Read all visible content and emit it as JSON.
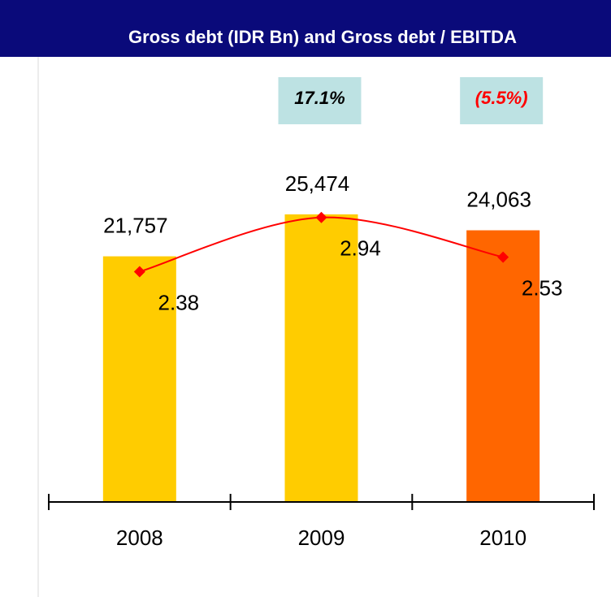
{
  "chart_data": {
    "type": "bar-line",
    "title": "Gross debt (IDR Bn) and Gross debt / EBITDA",
    "categories": [
      "2008",
      "2009",
      "2010"
    ],
    "series": [
      {
        "name": "Gross debt (IDR Bn)",
        "type": "bar",
        "colors": [
          "#ffcc00",
          "#ffcc00",
          "#ff6600"
        ],
        "values": [
          21757,
          25474,
          24063
        ],
        "value_labels": [
          "21,757",
          "25,474",
          "24,063"
        ]
      },
      {
        "name": "Gross debt / EBITDA",
        "type": "line",
        "axis": "y2",
        "color": "#ff0000",
        "values": [
          2.38,
          2.94,
          2.53
        ]
      }
    ],
    "annotations": [
      {
        "text": "17.1%",
        "color": "#000000",
        "category": 1
      },
      {
        "text": "(5.5%)",
        "color": "#ff0000",
        "category": 2
      }
    ],
    "ylim": [
      0,
      30000
    ],
    "y2lim": [
      0,
      3.5
    ]
  }
}
